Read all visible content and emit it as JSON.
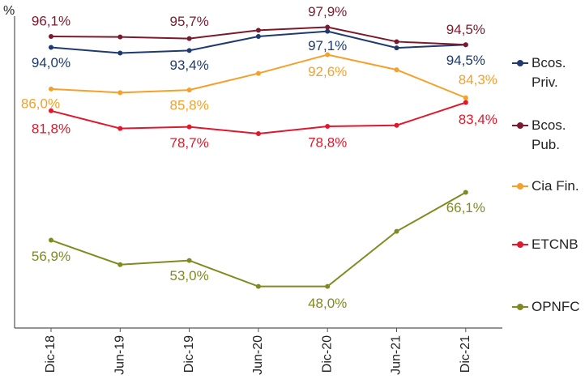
{
  "chart_data": {
    "type": "line",
    "y_label": "%",
    "categories": [
      "Dic-18",
      "Jun-19",
      "Dic-19",
      "Jun-20",
      "Dic-20",
      "Jun-21",
      "Dic-21"
    ],
    "ylim": [
      40,
      100
    ],
    "series": [
      {
        "name": "Bcos. Priv.",
        "color": "#1f3a6e",
        "values": [
          94.0,
          92.9,
          93.4,
          96.1,
          97.1,
          93.9,
          94.5
        ],
        "value_labels": [
          "94,0%",
          null,
          "93,4%",
          null,
          "97,1%",
          null,
          "94,5%"
        ]
      },
      {
        "name": "Bcos. Pub.",
        "color": "#7b1a2e",
        "values": [
          96.1,
          96.0,
          95.7,
          97.3,
          97.9,
          95.1,
          94.5
        ],
        "value_labels": [
          "96,1%",
          null,
          "95,7%",
          null,
          "97,9%",
          null,
          "94,5%"
        ]
      },
      {
        "name": "Cia Fin.",
        "color": "#f5a02a",
        "values": [
          86.0,
          85.3,
          85.8,
          89.0,
          92.6,
          89.7,
          84.3
        ],
        "value_labels": [
          "86,0%",
          null,
          "85,8%",
          null,
          "92,6%",
          null,
          "84,3%"
        ]
      },
      {
        "name": "ETCNB",
        "color": "#e0182d",
        "values": [
          81.8,
          78.4,
          78.7,
          77.4,
          78.8,
          79.0,
          83.4
        ],
        "value_labels": [
          "81,8%",
          null,
          "78,7%",
          null,
          "78,8%",
          null,
          "83,4%"
        ]
      },
      {
        "name": "OPNFC",
        "color": "#7f8a1f",
        "values": [
          56.9,
          52.2,
          53.0,
          48.0,
          48.0,
          58.6,
          66.1
        ],
        "value_labels": [
          "56,9%",
          null,
          "53,0%",
          null,
          "48,0%",
          null,
          "66,1%"
        ]
      }
    ]
  }
}
